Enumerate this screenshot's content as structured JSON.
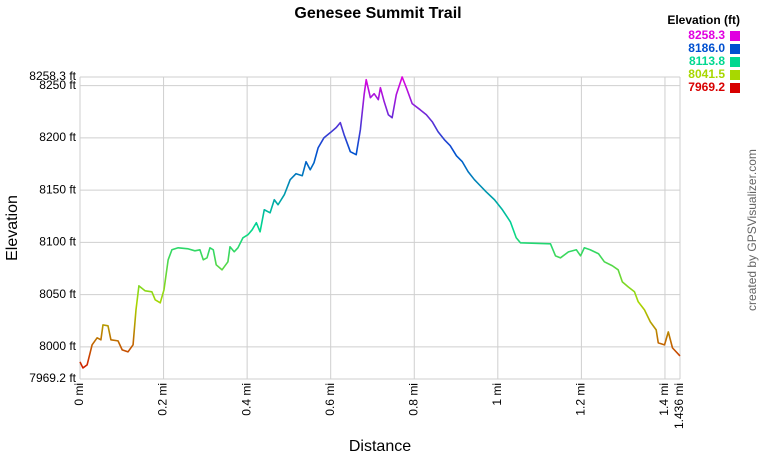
{
  "chart_data": {
    "type": "line",
    "title": "Genesee Summit Trail",
    "x_label": "Distance",
    "y_label": "Elevation",
    "credit": "created by GPSVisualizer.com",
    "xlim": [
      0,
      1.436
    ],
    "ylim": [
      7969.2,
      8258.3
    ],
    "grid": true,
    "xticks": [
      {
        "value": 0,
        "label": "0 mi"
      },
      {
        "value": 0.2,
        "label": "0.2 mi"
      },
      {
        "value": 0.4,
        "label": "0.4 mi"
      },
      {
        "value": 0.6,
        "label": "0.6 mi"
      },
      {
        "value": 0.8,
        "label": "0.8 mi"
      },
      {
        "value": 1,
        "label": "1 mi"
      },
      {
        "value": 1.2,
        "label": "1.2 mi"
      },
      {
        "value": 1.4,
        "label": "1.4 mi"
      },
      {
        "value": 1.436,
        "label": "1.436 mi"
      }
    ],
    "yticks": [
      {
        "value": 7969.2,
        "label": "7969.2 ft"
      },
      {
        "value": 8000,
        "label": "8000 ft"
      },
      {
        "value": 8050,
        "label": "8050 ft"
      },
      {
        "value": 8100,
        "label": "8100 ft"
      },
      {
        "value": 8150,
        "label": "8150 ft"
      },
      {
        "value": 8200,
        "label": "8200 ft"
      },
      {
        "value": 8250,
        "label": "8250 ft"
      },
      {
        "value": 8258.3,
        "label": "8258.3 ft"
      }
    ],
    "legend": {
      "title": "Elevation (ft)",
      "position": "top-right",
      "items": [
        {
          "value": 8258.3,
          "label": "8258.3",
          "color": "#e000e0"
        },
        {
          "value": 8186.0,
          "label": "8186.0",
          "color": "#0050d0"
        },
        {
          "value": 8113.8,
          "label": "8113.8",
          "color": "#00d890"
        },
        {
          "value": 8041.5,
          "label": "8041.5",
          "color": "#a8d800"
        },
        {
          "value": 7969.2,
          "label": "7969.2",
          "color": "#d80000"
        }
      ]
    },
    "x": [
      0,
      0.007,
      0.017,
      0.029,
      0.041,
      0.05,
      0.055,
      0.067,
      0.074,
      0.091,
      0.101,
      0.115,
      0.127,
      0.134,
      0.141,
      0.156,
      0.172,
      0.18,
      0.192,
      0.201,
      0.211,
      0.22,
      0.235,
      0.259,
      0.275,
      0.287,
      0.295,
      0.304,
      0.311,
      0.319,
      0.326,
      0.34,
      0.354,
      0.359,
      0.369,
      0.378,
      0.39,
      0.402,
      0.412,
      0.422,
      0.431,
      0.441,
      0.455,
      0.465,
      0.474,
      0.489,
      0.503,
      0.517,
      0.532,
      0.541,
      0.551,
      0.56,
      0.57,
      0.584,
      0.599,
      0.613,
      0.623,
      0.632,
      0.647,
      0.661,
      0.671,
      0.68,
      0.685,
      0.695,
      0.704,
      0.714,
      0.719,
      0.728,
      0.738,
      0.747,
      0.757,
      0.771,
      0.781,
      0.795,
      0.814,
      0.829,
      0.843,
      0.857,
      0.872,
      0.886,
      0.901,
      0.915,
      0.929,
      0.944,
      0.958,
      0.972,
      0.992,
      1.011,
      1.03,
      1.044,
      1.054,
      1.126,
      1.138,
      1.15,
      1.169,
      1.188,
      1.198,
      1.207,
      1.221,
      1.241,
      1.255,
      1.274,
      1.288,
      1.298,
      1.312,
      1.327,
      1.336,
      1.351,
      1.365,
      1.379,
      1.384,
      1.399,
      1.408,
      1.418,
      1.436
    ],
    "values": [
      7985.6,
      7979.8,
      7982.7,
      8001.9,
      8008.6,
      8006.7,
      8021.0,
      8020.1,
      8006.7,
      8005.7,
      7997.1,
      7995.2,
      8001.9,
      8035.4,
      8058.4,
      8053.6,
      8052.7,
      8045.0,
      8042.1,
      8054.6,
      8083.3,
      8092.9,
      8094.8,
      8093.8,
      8091.9,
      8092.9,
      8083.3,
      8085.2,
      8094.8,
      8092.9,
      8078.5,
      8073.7,
      8081.4,
      8095.8,
      8091.0,
      8094.8,
      8104.4,
      8107.3,
      8112.0,
      8118.8,
      8110.1,
      8131.2,
      8128.3,
      8140.8,
      8136.0,
      8145.6,
      8160.0,
      8165.7,
      8163.8,
      8177.2,
      8169.5,
      8176.2,
      8190.6,
      8200.2,
      8205.0,
      8209.8,
      8214.6,
      8203.1,
      8186.8,
      8183.9,
      8207.8,
      8241.4,
      8255.7,
      8238.5,
      8242.3,
      8236.6,
      8248.1,
      8234.7,
      8222.2,
      8219.3,
      8241.4,
      8258.3,
      8248.1,
      8232.8,
      8227.0,
      8222.2,
      8215.5,
      8205.9,
      8198.3,
      8192.5,
      8182.9,
      8177.2,
      8167.6,
      8160.0,
      8154.2,
      8148.4,
      8140.8,
      8131.2,
      8119.7,
      8104.4,
      8099.6,
      8098.6,
      8087.1,
      8085.2,
      8090.9,
      8092.9,
      8087.1,
      8094.8,
      8092.9,
      8089.1,
      8081.4,
      8077.6,
      8073.7,
      8062.2,
      8057.4,
      8052.7,
      8043.1,
      8035.4,
      8023.9,
      8016.2,
      8003.8,
      8001.9,
      8014.3,
      7999.0,
      7991.3
    ]
  }
}
